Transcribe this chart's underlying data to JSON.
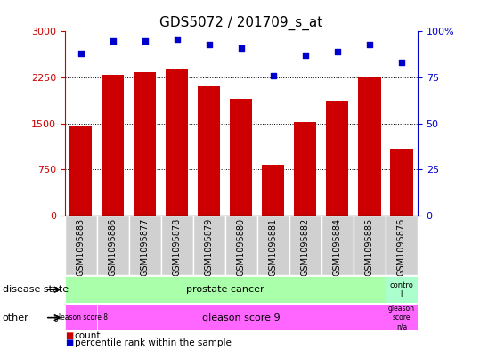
{
  "title": "GDS5072 / 201709_s_at",
  "samples": [
    "GSM1095883",
    "GSM1095886",
    "GSM1095877",
    "GSM1095878",
    "GSM1095879",
    "GSM1095880",
    "GSM1095881",
    "GSM1095882",
    "GSM1095884",
    "GSM1095885",
    "GSM1095876"
  ],
  "counts": [
    1450,
    2300,
    2330,
    2390,
    2100,
    1900,
    830,
    1520,
    1870,
    2270,
    1080
  ],
  "percentiles": [
    88,
    95,
    95,
    96,
    93,
    91,
    76,
    87,
    89,
    93,
    83
  ],
  "ylim_left": [
    0,
    3000
  ],
  "ylim_right": [
    0,
    100
  ],
  "yticks_left": [
    0,
    750,
    1500,
    2250,
    3000
  ],
  "yticks_right": [
    0,
    25,
    50,
    75,
    100
  ],
  "bar_color": "#cc0000",
  "dot_color": "#0000cc",
  "background_color": "#ffffff",
  "title_fontsize": 11,
  "tick_fontsize": 8,
  "sample_label_fontsize": 7,
  "legend_label_fontsize": 8,
  "xlabel_disease": "disease state",
  "xlabel_other": "other",
  "disease_state_prostate_color": "#aaffaa",
  "disease_state_control_color": "#aaffcc",
  "other_gleason8_color": "#ff66ff",
  "other_gleason9_color": "#ff66ff",
  "other_gleasonna_color": "#ff66ff",
  "xticklabel_bg": "#d0d0d0"
}
